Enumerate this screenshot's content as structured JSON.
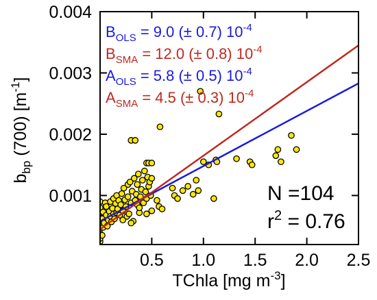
{
  "chart_data": {
    "type": "scatter",
    "xlabel": {
      "main": "TChla [mg m",
      "sup": "-3",
      "tail": "]"
    },
    "ylabel": {
      "main": "b",
      "sub": "bp",
      "rest": " (700) [m",
      "sup": "-1",
      "tail": "]"
    },
    "xlim": [
      0,
      2.5
    ],
    "ylim": [
      0.0002,
      0.004
    ],
    "x_ticks": [
      {
        "value": 0.5,
        "label": "0.5"
      },
      {
        "value": 1.0,
        "label": "1.0"
      },
      {
        "value": 1.5,
        "label": "1.5"
      },
      {
        "value": 2.0,
        "label": "2.0"
      },
      {
        "value": 2.5,
        "label": "2.5"
      }
    ],
    "y_ticks": [
      {
        "value": 0.001,
        "label": "0.001"
      },
      {
        "value": 0.002,
        "label": "0.002"
      },
      {
        "value": 0.003,
        "label": "0.003"
      },
      {
        "value": 0.004,
        "label": "0.004"
      }
    ],
    "grid": false,
    "marker_color": "#ffe800",
    "marker_edge_color": "#000000",
    "annotations": [
      {
        "name": "b-ols",
        "letter": "B",
        "sub": "OLS",
        "text": " = 9.0 (± 0.7) 10",
        "sup": "-4",
        "color": "#1a1adc"
      },
      {
        "name": "b-sma",
        "letter": "B",
        "sub": "SMA",
        "text": " = 12.0 (± 0.8) 10",
        "sup": "-4",
        "color": "#c0281e"
      },
      {
        "name": "a-ols",
        "letter": "A",
        "sub": "OLS",
        "text": " = 5.8 (± 0.5) 10",
        "sup": "-4",
        "color": "#1a1adc"
      },
      {
        "name": "a-sma",
        "letter": "A",
        "sub": "SMA",
        "text": " = 4.5 (± 0.3) 10",
        "sup": "-4",
        "color": "#c0281e"
      }
    ],
    "stats": {
      "n_text": "N =104",
      "r_main": "r",
      "r_sup": "2",
      "r_value": " = 0.76"
    },
    "lines": [
      {
        "name": "OLS fit",
        "slope": 0.0009,
        "intercept": 0.00058,
        "color": "#1a1adc"
      },
      {
        "name": "SMA fit",
        "slope": 0.0012,
        "intercept": 0.00045,
        "color": "#c0281e"
      }
    ],
    "points": [
      [
        0.0,
        0.00025
      ],
      [
        0.0,
        0.0003
      ],
      [
        0.0,
        0.00038
      ],
      [
        0.0,
        0.00046
      ],
      [
        0.0,
        0.00052
      ],
      [
        0.0,
        0.00059
      ],
      [
        0.0,
        0.00065
      ],
      [
        0.0,
        0.00072
      ],
      [
        0.0,
        0.0008
      ],
      [
        0.0,
        0.0009
      ],
      [
        0.02,
        0.00035
      ],
      [
        0.03,
        0.00048
      ],
      [
        0.02,
        0.00062
      ],
      [
        0.04,
        0.00055
      ],
      [
        0.03,
        0.00073
      ],
      [
        0.05,
        0.00088
      ],
      [
        0.06,
        0.00068
      ],
      [
        0.07,
        0.0005
      ],
      [
        0.06,
        0.00082
      ],
      [
        0.08,
        0.0006
      ],
      [
        0.09,
        0.00074
      ],
      [
        0.1,
        0.00066
      ],
      [
        0.1,
        0.0009
      ],
      [
        0.11,
        0.00057
      ],
      [
        0.12,
        0.00079
      ],
      [
        0.13,
        0.0007
      ],
      [
        0.13,
        0.00095
      ],
      [
        0.14,
        0.00062
      ],
      [
        0.15,
        0.00087
      ],
      [
        0.16,
        0.00072
      ],
      [
        0.16,
        0.001
      ],
      [
        0.17,
        0.00078
      ],
      [
        0.18,
        0.00092
      ],
      [
        0.19,
        0.00068
      ],
      [
        0.2,
        0.00085
      ],
      [
        0.21,
        0.00103
      ],
      [
        0.22,
        0.00075
      ],
      [
        0.22,
        0.0006
      ],
      [
        0.23,
        0.00112
      ],
      [
        0.24,
        0.00093
      ],
      [
        0.25,
        0.00082
      ],
      [
        0.26,
        0.00066
      ],
      [
        0.27,
        0.00118
      ],
      [
        0.27,
        0.00098
      ],
      [
        0.28,
        0.0007
      ],
      [
        0.29,
        0.00122
      ],
      [
        0.3,
        0.00088
      ],
      [
        0.31,
        0.00107
      ],
      [
        0.32,
        0.00058
      ],
      [
        0.33,
        0.00128
      ],
      [
        0.34,
        0.00092
      ],
      [
        0.35,
        0.00102
      ],
      [
        0.36,
        0.00085
      ],
      [
        0.36,
        0.00118
      ],
      [
        0.37,
        0.00135
      ],
      [
        0.38,
        0.00072
      ],
      [
        0.39,
        0.00098
      ],
      [
        0.4,
        0.0011
      ],
      [
        0.41,
        0.00125
      ],
      [
        0.42,
        0.00088
      ],
      [
        0.43,
        0.0014
      ],
      [
        0.44,
        0.00106
      ],
      [
        0.45,
        0.00095
      ],
      [
        0.46,
        0.0013
      ],
      [
        0.47,
        0.00115
      ],
      [
        0.48,
        0.00122
      ],
      [
        0.49,
        0.001
      ],
      [
        0.5,
        0.00128
      ],
      [
        0.45,
        0.00153
      ],
      [
        0.47,
        0.00153
      ],
      [
        0.5,
        0.00153
      ],
      [
        0.3,
        0.0019
      ],
      [
        0.34,
        0.0019
      ],
      [
        0.38,
        0.0008
      ],
      [
        0.45,
        0.0007
      ],
      [
        0.5,
        0.00075
      ],
      [
        0.55,
        0.00092
      ],
      [
        0.57,
        0.00082
      ],
      [
        0.6,
        0.00078
      ],
      [
        0.58,
        0.00212
      ],
      [
        0.7,
        0.00112
      ],
      [
        0.72,
        0.001
      ],
      [
        0.75,
        0.00095
      ],
      [
        0.8,
        0.00108
      ],
      [
        0.85,
        0.00115
      ],
      [
        0.9,
        0.00102
      ],
      [
        0.93,
        0.00125
      ],
      [
        0.95,
        0.00108
      ],
      [
        0.97,
        0.0027
      ],
      [
        1.0,
        0.00155
      ],
      [
        1.05,
        0.0015
      ],
      [
        1.1,
        0.00095
      ],
      [
        1.12,
        0.00158
      ],
      [
        1.13,
        0.00155
      ],
      [
        1.15,
        0.00233
      ],
      [
        1.32,
        0.0016
      ],
      [
        1.45,
        0.00155
      ],
      [
        1.47,
        0.0015
      ],
      [
        1.7,
        0.00165
      ],
      [
        1.72,
        0.00175
      ],
      [
        1.75,
        0.00155
      ],
      [
        1.9,
        0.00175
      ],
      [
        1.85,
        0.00198
      ],
      [
        0.3,
        0.00055
      ]
    ]
  }
}
